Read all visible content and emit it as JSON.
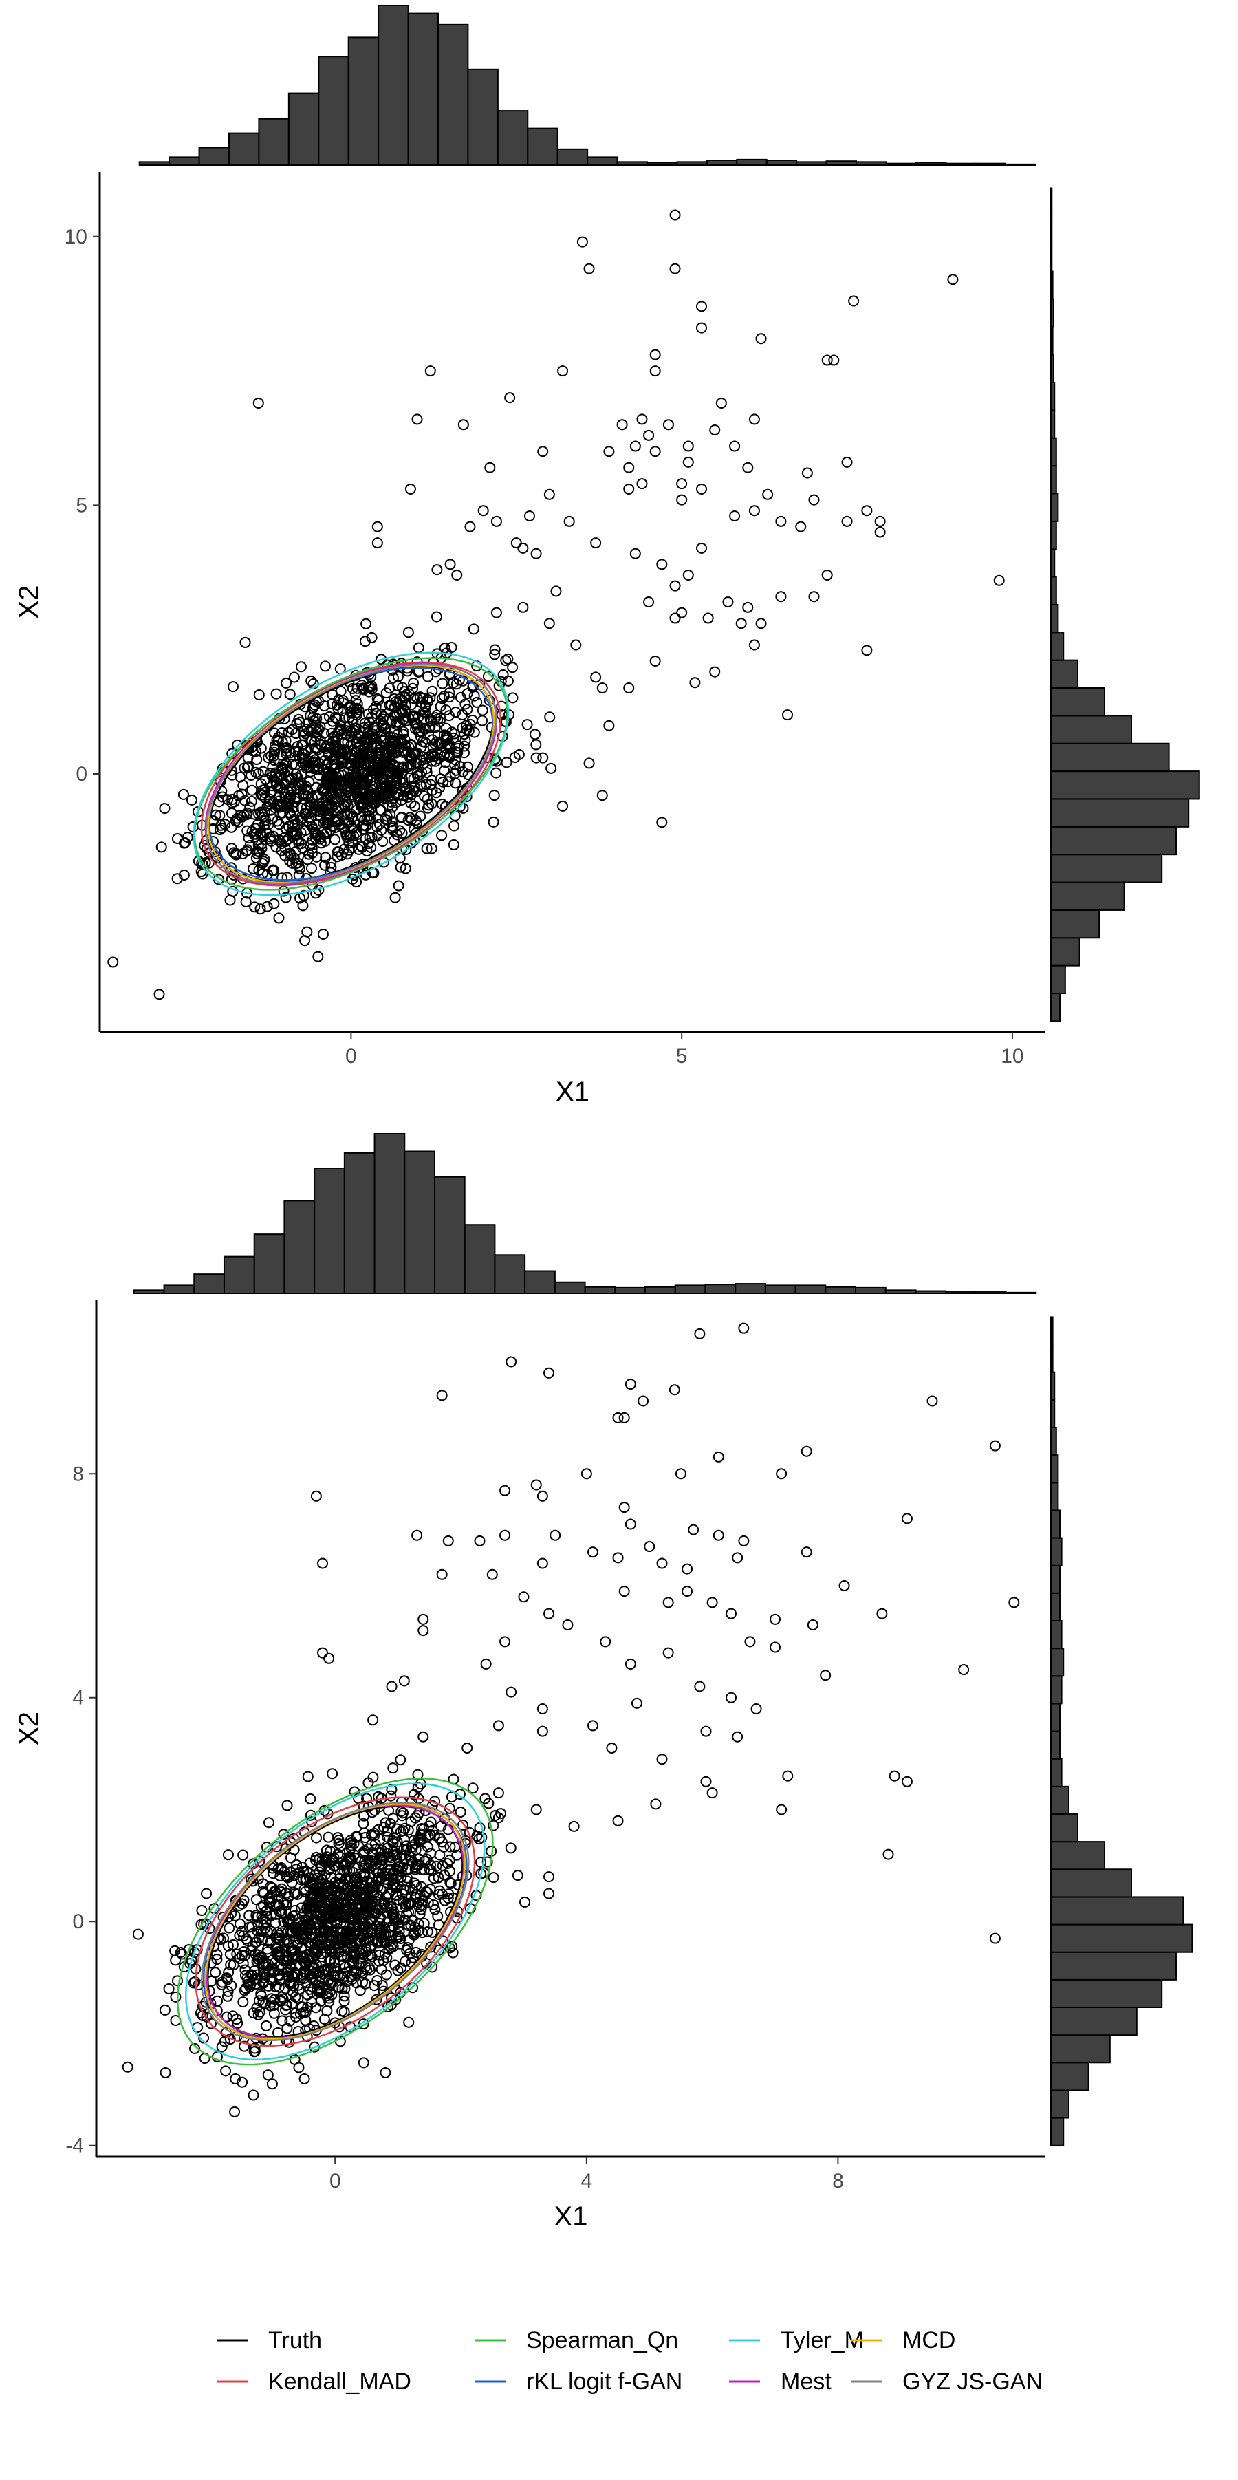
{
  "chart_data": [
    {
      "type": "scatter",
      "title": "",
      "xlabel": "X1",
      "ylabel": "X2",
      "xlim": [
        -3.8,
        10.5
      ],
      "ylim": [
        -4.8,
        11.2
      ],
      "xticks": [
        0,
        5,
        10
      ],
      "yticks": [
        0,
        5,
        10
      ],
      "grid": false,
      "cluster": {
        "n": 1400,
        "mean": [
          0,
          0
        ],
        "sd": [
          1,
          1
        ],
        "corr": 0.5,
        "seed": 11,
        "spread": 2.9,
        "clip_radius": 3.3
      },
      "outliers": [
        [
          -1.4,
          6.9
        ],
        [
          3.5,
          9.9
        ],
        [
          3.6,
          9.4
        ],
        [
          4.9,
          10.4
        ],
        [
          4.9,
          9.4
        ],
        [
          5.3,
          8.7
        ],
        [
          5.3,
          8.3
        ],
        [
          6.2,
          8.1
        ],
        [
          7.6,
          8.8
        ],
        [
          9.1,
          9.2
        ],
        [
          7.2,
          7.7
        ],
        [
          7.3,
          7.7
        ],
        [
          4.6,
          7.8
        ],
        [
          4.6,
          7.5
        ],
        [
          3.2,
          7.5
        ],
        [
          2.4,
          7.0
        ],
        [
          1.2,
          7.5
        ],
        [
          1.0,
          6.6
        ],
        [
          1.7,
          6.5
        ],
        [
          4.1,
          6.5
        ],
        [
          4.4,
          6.6
        ],
        [
          4.5,
          6.3
        ],
        [
          4.8,
          6.5
        ],
        [
          5.1,
          6.1
        ],
        [
          5.5,
          6.4
        ],
        [
          5.6,
          6.9
        ],
        [
          6.1,
          6.6
        ],
        [
          3.9,
          6.0
        ],
        [
          4.2,
          5.7
        ],
        [
          4.3,
          6.1
        ],
        [
          4.6,
          6.0
        ],
        [
          5.1,
          5.8
        ],
        [
          5.8,
          6.1
        ],
        [
          6.0,
          5.7
        ],
        [
          6.9,
          5.6
        ],
        [
          7.5,
          5.8
        ],
        [
          0.9,
          5.3
        ],
        [
          2.1,
          5.7
        ],
        [
          2.9,
          6.0
        ],
        [
          3.0,
          5.2
        ],
        [
          4.2,
          5.3
        ],
        [
          4.4,
          5.4
        ],
        [
          5.0,
          5.4
        ],
        [
          5.0,
          5.1
        ],
        [
          5.3,
          5.3
        ],
        [
          6.3,
          5.2
        ],
        [
          7.0,
          5.1
        ],
        [
          2.2,
          4.7
        ],
        [
          1.8,
          4.6
        ],
        [
          2.0,
          4.9
        ],
        [
          2.7,
          4.8
        ],
        [
          3.3,
          4.7
        ],
        [
          5.8,
          4.8
        ],
        [
          6.1,
          4.9
        ],
        [
          6.5,
          4.7
        ],
        [
          6.8,
          4.6
        ],
        [
          7.5,
          4.7
        ],
        [
          7.8,
          4.9
        ],
        [
          8.0,
          4.7
        ],
        [
          8.0,
          4.5
        ],
        [
          0.4,
          4.6
        ],
        [
          0.4,
          4.3
        ],
        [
          1.3,
          3.8
        ],
        [
          1.5,
          3.9
        ],
        [
          1.6,
          3.7
        ],
        [
          2.5,
          4.3
        ],
        [
          2.6,
          4.2
        ],
        [
          2.8,
          4.1
        ],
        [
          3.1,
          3.4
        ],
        [
          3.7,
          4.3
        ],
        [
          4.3,
          4.1
        ],
        [
          4.5,
          3.2
        ],
        [
          4.7,
          3.9
        ],
        [
          4.9,
          3.5
        ],
        [
          5.1,
          3.7
        ],
        [
          5.3,
          4.2
        ],
        [
          5.0,
          3.0
        ],
        [
          5.4,
          2.9
        ],
        [
          5.7,
          3.2
        ],
        [
          5.9,
          2.8
        ],
        [
          6.0,
          3.1
        ],
        [
          6.2,
          2.8
        ],
        [
          6.5,
          3.3
        ],
        [
          7.0,
          3.3
        ],
        [
          7.2,
          3.7
        ],
        [
          9.8,
          3.6
        ],
        [
          2.2,
          3.0
        ],
        [
          2.6,
          3.1
        ],
        [
          3.0,
          2.8
        ],
        [
          3.4,
          2.4
        ],
        [
          3.7,
          1.8
        ],
        [
          3.8,
          1.6
        ],
        [
          4.2,
          1.6
        ],
        [
          4.6,
          2.1
        ],
        [
          4.9,
          2.9
        ],
        [
          5.2,
          1.7
        ],
        [
          5.5,
          1.9
        ],
        [
          6.1,
          2.4
        ],
        [
          6.6,
          1.1
        ],
        [
          7.8,
          2.3
        ],
        [
          3.9,
          0.9
        ],
        [
          3.6,
          0.2
        ],
        [
          3.2,
          -0.6
        ],
        [
          4.7,
          -0.9
        ],
        [
          3.8,
          -0.4
        ],
        [
          2.8,
          0.3
        ],
        [
          2.9,
          0.3
        ],
        [
          -3.6,
          -3.5
        ],
        [
          -2.9,
          -4.1
        ],
        [
          -0.5,
          -3.4
        ],
        [
          -0.7,
          -3.1
        ]
      ],
      "ellipses": [
        {
          "name": "Truth",
          "color": "#000000",
          "rx": 2.55,
          "ry": 1.45,
          "angle": -41
        },
        {
          "name": "Kendall_MAD",
          "color": "#e0404a",
          "rx": 2.65,
          "ry": 1.55,
          "angle": -40
        },
        {
          "name": "Spearman_Qn",
          "color": "#3cbf3c",
          "rx": 2.8,
          "ry": 1.55,
          "angle": -40
        },
        {
          "name": "rKL logit f-GAN",
          "color": "#1f5fd6",
          "rx": 2.5,
          "ry": 1.5,
          "angle": -40
        },
        {
          "name": "Tyler_M",
          "color": "#2fd0e0",
          "rx": 2.85,
          "ry": 1.62,
          "angle": -42
        },
        {
          "name": "Mest",
          "color": "#c020c0",
          "rx": 2.6,
          "ry": 1.52,
          "angle": -41
        },
        {
          "name": "MCD",
          "color": "#f0b000",
          "rx": 2.55,
          "ry": 1.5,
          "angle": -41
        },
        {
          "name": "GYZ JS-GAN",
          "color": "#808080",
          "rx": 2.6,
          "ry": 1.48,
          "angle": -41
        }
      ],
      "hist_x": [
        0.02,
        0.05,
        0.11,
        0.2,
        0.29,
        0.45,
        0.68,
        0.8,
        1.0,
        0.95,
        0.88,
        0.6,
        0.34,
        0.23,
        0.1,
        0.05,
        0.02,
        0.015,
        0.02,
        0.03,
        0.035,
        0.03,
        0.02,
        0.025,
        0.02,
        0.01,
        0.015,
        0.01,
        0.01,
        0.005
      ],
      "hist_y": [
        0.05,
        0.08,
        0.16,
        0.27,
        0.41,
        0.62,
        0.7,
        0.77,
        0.83,
        0.66,
        0.45,
        0.3,
        0.15,
        0.07,
        0.04,
        0.03,
        0.02,
        0.03,
        0.04,
        0.03,
        0.03,
        0.02,
        0.02,
        0.015,
        0.01,
        0.015,
        0.01,
        0.005,
        0.005,
        0.005
      ]
    },
    {
      "type": "scatter",
      "title": "",
      "xlabel": "X1",
      "ylabel": "X2",
      "xlim": [
        -3.8,
        11.3
      ],
      "ylim": [
        -4.2,
        11.1
      ],
      "xticks": [
        0,
        4,
        8
      ],
      "yticks": [
        -4,
        0,
        4,
        8
      ],
      "grid": false,
      "cluster": {
        "n": 1400,
        "mean": [
          0,
          0
        ],
        "sd": [
          1,
          1
        ],
        "corr": 0.5,
        "seed": 23,
        "spread": 2.9,
        "clip_radius": 3.3
      },
      "outliers": [
        [
          2.8,
          10.0
        ],
        [
          3.4,
          9.8
        ],
        [
          5.8,
          10.5
        ],
        [
          6.5,
          10.6
        ],
        [
          1.7,
          9.4
        ],
        [
          4.7,
          9.6
        ],
        [
          5.4,
          9.5
        ],
        [
          4.9,
          9.3
        ],
        [
          4.5,
          9.0
        ],
        [
          4.6,
          9.0
        ],
        [
          9.5,
          9.3
        ],
        [
          10.5,
          8.5
        ],
        [
          6.1,
          8.3
        ],
        [
          7.1,
          8.0
        ],
        [
          7.5,
          8.4
        ],
        [
          5.5,
          8.0
        ],
        [
          4.0,
          8.0
        ],
        [
          3.2,
          7.8
        ],
        [
          3.3,
          7.6
        ],
        [
          2.7,
          7.7
        ],
        [
          -0.3,
          7.6
        ],
        [
          4.6,
          7.4
        ],
        [
          4.7,
          7.1
        ],
        [
          5.7,
          7.0
        ],
        [
          6.1,
          6.9
        ],
        [
          9.1,
          7.2
        ],
        [
          1.3,
          6.9
        ],
        [
          1.8,
          6.8
        ],
        [
          2.3,
          6.8
        ],
        [
          2.7,
          6.9
        ],
        [
          3.5,
          6.9
        ],
        [
          4.1,
          6.6
        ],
        [
          4.5,
          6.5
        ],
        [
          5.0,
          6.7
        ],
        [
          5.2,
          6.4
        ],
        [
          5.6,
          6.3
        ],
        [
          6.4,
          6.5
        ],
        [
          6.5,
          6.8
        ],
        [
          7.5,
          6.6
        ],
        [
          8.1,
          6.0
        ],
        [
          -0.2,
          6.4
        ],
        [
          1.7,
          6.2
        ],
        [
          2.5,
          6.2
        ],
        [
          3.3,
          6.4
        ],
        [
          3.0,
          5.8
        ],
        [
          3.4,
          5.5
        ],
        [
          4.6,
          5.9
        ],
        [
          5.3,
          5.7
        ],
        [
          5.6,
          5.9
        ],
        [
          6.0,
          5.7
        ],
        [
          6.3,
          5.5
        ],
        [
          7.0,
          5.4
        ],
        [
          7.6,
          5.3
        ],
        [
          8.7,
          5.5
        ],
        [
          10.8,
          5.7
        ],
        [
          1.4,
          5.4
        ],
        [
          1.4,
          5.2
        ],
        [
          2.7,
          5.0
        ],
        [
          3.7,
          5.3
        ],
        [
          4.3,
          5.0
        ],
        [
          4.7,
          4.6
        ],
        [
          5.3,
          4.8
        ],
        [
          6.6,
          5.0
        ],
        [
          7.0,
          4.9
        ],
        [
          7.8,
          4.4
        ],
        [
          -0.2,
          4.8
        ],
        [
          -0.1,
          4.7
        ],
        [
          1.1,
          4.3
        ],
        [
          0.9,
          4.2
        ],
        [
          2.4,
          4.6
        ],
        [
          2.8,
          4.1
        ],
        [
          3.3,
          3.8
        ],
        [
          4.1,
          3.5
        ],
        [
          4.8,
          3.9
        ],
        [
          5.8,
          4.2
        ],
        [
          6.3,
          4.0
        ],
        [
          6.7,
          3.8
        ],
        [
          10.0,
          4.5
        ],
        [
          0.6,
          3.6
        ],
        [
          1.4,
          3.3
        ],
        [
          2.1,
          3.1
        ],
        [
          2.6,
          3.5
        ],
        [
          3.3,
          3.4
        ],
        [
          4.4,
          3.1
        ],
        [
          5.2,
          2.9
        ],
        [
          5.9,
          3.4
        ],
        [
          6.4,
          3.3
        ],
        [
          7.2,
          2.6
        ],
        [
          8.9,
          2.6
        ],
        [
          9.1,
          2.5
        ],
        [
          2.6,
          2.3
        ],
        [
          3.2,
          2.0
        ],
        [
          3.8,
          1.7
        ],
        [
          4.5,
          1.8
        ],
        [
          5.1,
          2.1
        ],
        [
          5.9,
          2.5
        ],
        [
          6.0,
          2.3
        ],
        [
          7.1,
          2.0
        ],
        [
          3.4,
          0.8
        ],
        [
          3.4,
          0.5
        ],
        [
          8.8,
          1.2
        ],
        [
          10.5,
          -0.3
        ],
        [
          -3.3,
          -2.6
        ],
        [
          -2.7,
          -2.7
        ],
        [
          -1.6,
          -3.4
        ],
        [
          -1.3,
          -3.1
        ],
        [
          0.8,
          -2.7
        ],
        [
          -1.0,
          -2.9
        ]
      ],
      "ellipses": [
        {
          "name": "Truth",
          "color": "#000000",
          "rx": 2.5,
          "ry": 1.45,
          "angle": -46
        },
        {
          "name": "Kendall_MAD",
          "color": "#e0404a",
          "rx": 2.7,
          "ry": 1.6,
          "angle": -45
        },
        {
          "name": "Spearman_Qn",
          "color": "#3cbf3c",
          "rx": 3.15,
          "ry": 1.7,
          "angle": -46
        },
        {
          "name": "rKL logit f-GAN",
          "color": "#1f5fd6",
          "rx": 2.55,
          "ry": 1.5,
          "angle": -45
        },
        {
          "name": "Tyler_M",
          "color": "#2fd0e0",
          "rx": 3.0,
          "ry": 1.65,
          "angle": -47
        },
        {
          "name": "Mest",
          "color": "#c020c0",
          "rx": 2.5,
          "ry": 1.5,
          "angle": -46
        },
        {
          "name": "MCD",
          "color": "#f0b000",
          "rx": 2.55,
          "ry": 1.47,
          "angle": -46
        },
        {
          "name": "GYZ JS-GAN",
          "color": "#808080",
          "rx": 2.6,
          "ry": 1.5,
          "angle": -45
        }
      ],
      "hist_x": [
        0.02,
        0.05,
        0.12,
        0.23,
        0.37,
        0.58,
        0.78,
        0.88,
        1.0,
        0.89,
        0.73,
        0.43,
        0.24,
        0.14,
        0.07,
        0.04,
        0.035,
        0.04,
        0.05,
        0.055,
        0.06,
        0.05,
        0.05,
        0.04,
        0.035,
        0.02,
        0.015,
        0.01,
        0.01,
        0.005
      ],
      "hist_y": [
        0.07,
        0.1,
        0.21,
        0.33,
        0.48,
        0.62,
        0.7,
        0.79,
        0.74,
        0.45,
        0.3,
        0.15,
        0.1,
        0.06,
        0.05,
        0.05,
        0.06,
        0.07,
        0.06,
        0.05,
        0.05,
        0.06,
        0.05,
        0.04,
        0.04,
        0.03,
        0.02,
        0.02,
        0.01,
        0.01
      ]
    }
  ],
  "legend": {
    "items": [
      {
        "label": "Truth",
        "color": "#000000"
      },
      {
        "label": "Kendall_MAD",
        "color": "#e0404a"
      },
      {
        "label": "Spearman_Qn",
        "color": "#3cbf3c"
      },
      {
        "label": "rKL logit f-GAN",
        "color": "#1f5fd6"
      },
      {
        "label": "Tyler_M",
        "color": "#2fd0e0"
      },
      {
        "label": "Mest",
        "color": "#c020c0"
      },
      {
        "label": "MCD",
        "color": "#f0b000"
      },
      {
        "label": "GYZ JS-GAN",
        "color": "#808080"
      }
    ]
  }
}
